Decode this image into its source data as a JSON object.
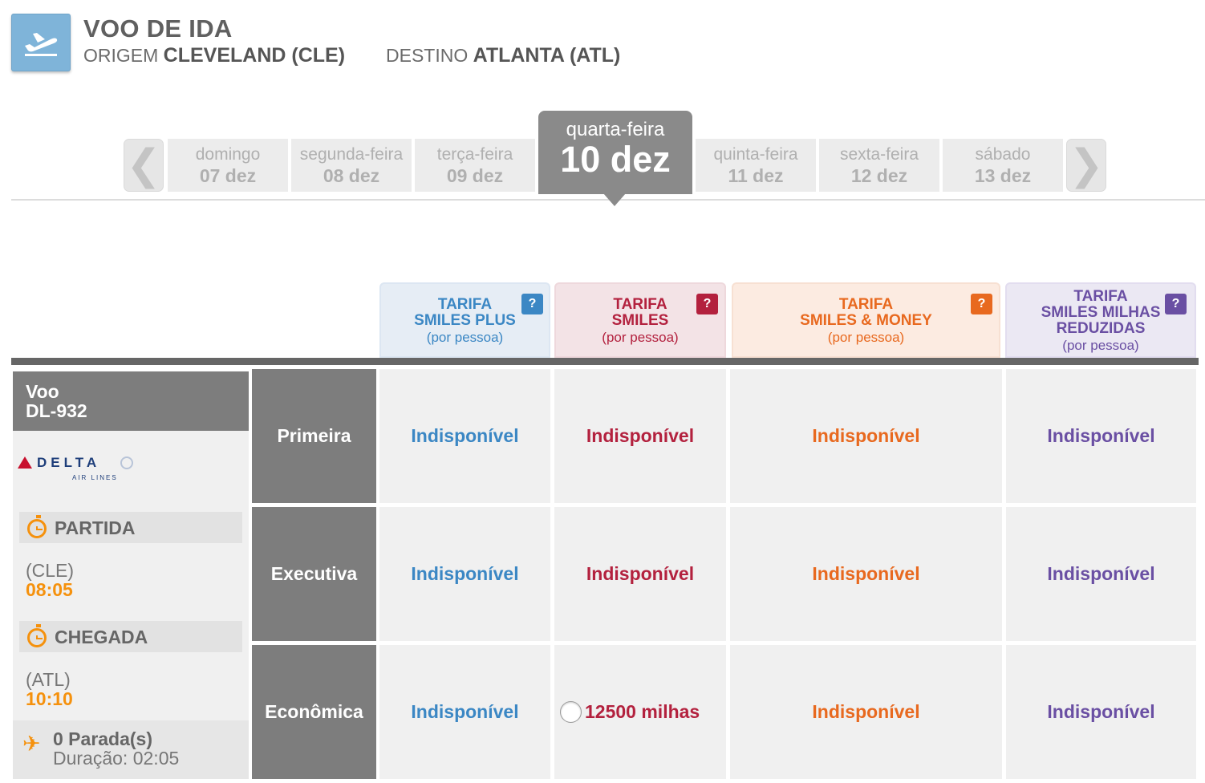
{
  "header": {
    "title": "VOO DE IDA",
    "origin_label": "ORIGEM",
    "origin_value": "CLEVELAND (CLE)",
    "dest_label": "DESTINO",
    "dest_value": "ATLANTA (ATL)",
    "icon": "airplane-takeoff-icon"
  },
  "dates": {
    "prev_icon": "chevron-left-icon",
    "next_icon": "chevron-right-icon",
    "days": [
      {
        "weekday": "domingo",
        "date": "07 dez"
      },
      {
        "weekday": "segunda-feira",
        "date": "08 dez"
      },
      {
        "weekday": "terça-feira",
        "date": "09 dez"
      },
      {
        "weekday": "quarta-feira",
        "date": "10 dez",
        "selected": true
      },
      {
        "weekday": "quinta-feira",
        "date": "11 dez"
      },
      {
        "weekday": "sexta-feira",
        "date": "12 dez"
      },
      {
        "weekday": "sábado",
        "date": "13 dez"
      }
    ]
  },
  "fares": [
    {
      "line1": "TARIFA",
      "line2": "SMILES PLUS",
      "line3": "",
      "sub": "(por pessoa)",
      "help": "?",
      "color": "#3b87c4"
    },
    {
      "line1": "TARIFA",
      "line2": "SMILES",
      "line3": "",
      "sub": "(por pessoa)",
      "help": "?",
      "color": "#b3213e"
    },
    {
      "line1": "TARIFA",
      "line2": "SMILES & MONEY",
      "line3": "",
      "sub": "(por pessoa)",
      "help": "?",
      "color": "#e8691f"
    },
    {
      "line1": "TARIFA",
      "line2": "SMILES MILHAS",
      "line3": "REDUZIDAS",
      "sub": "(por pessoa)",
      "help": "?",
      "color": "#6a4fa3"
    }
  ],
  "flight": {
    "label": "Voo",
    "number": "DL-932",
    "airline_logo_text": "DELTA",
    "airline_logo_sub": "AIR LINES",
    "departure_label": "PARTIDA",
    "departure_code": "(CLE)",
    "departure_time": "08:05",
    "arrival_label": "CHEGADA",
    "arrival_code": "(ATL)",
    "arrival_time": "10:10",
    "stops": "0 Parada(s)",
    "duration": "Duração: 02:05"
  },
  "cabins": [
    {
      "name": "Primeira",
      "cells": [
        "Indisponível",
        "Indisponível",
        "Indisponível",
        "Indisponível"
      ]
    },
    {
      "name": "Executiva",
      "cells": [
        "Indisponível",
        "Indisponível",
        "Indisponível",
        "Indisponível"
      ]
    },
    {
      "name": "Econômica",
      "cells": [
        "Indisponível",
        "12500 milhas",
        "Indisponível",
        "Indisponível"
      ]
    }
  ]
}
